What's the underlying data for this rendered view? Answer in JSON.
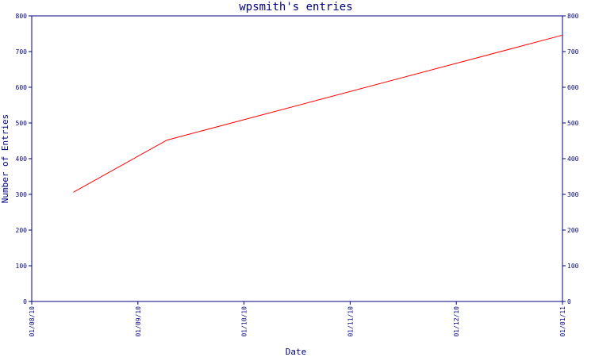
{
  "chart_data": {
    "type": "line",
    "title": "wpsmith's entries",
    "xlabel": "Date",
    "ylabel": "Number of Entries",
    "x_tick_labels": [
      "01/08/10",
      "01/09/10",
      "01/10/10",
      "01/11/10",
      "01/12/10",
      "01/01/11"
    ],
    "y_ticks": [
      0,
      100,
      200,
      300,
      400,
      500,
      600,
      700,
      800
    ],
    "ylim": [
      0,
      800
    ],
    "xlim": [
      "2010-08-01",
      "2011-01-01"
    ],
    "grid": false,
    "series": [
      {
        "color": "#ff0000",
        "x": [
          "2010-08-13",
          "2010-09-09",
          "2011-01-01"
        ],
        "values": [
          306,
          452,
          746
        ]
      }
    ]
  }
}
